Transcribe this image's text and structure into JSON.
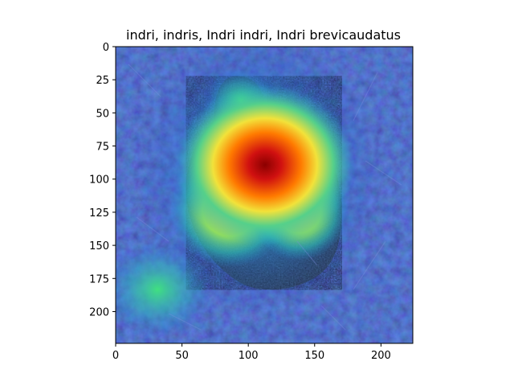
{
  "chart_data": {
    "type": "heatmap",
    "title": "indri, indris, Indri indri, Indri brevicaudatus",
    "xlabel": "",
    "ylabel": "",
    "image_size": [
      224,
      224
    ],
    "xlim": [
      0,
      224
    ],
    "ylim": [
      224,
      0
    ],
    "x_ticks": [
      0,
      50,
      100,
      150,
      200
    ],
    "y_ticks": [
      0,
      25,
      50,
      75,
      100,
      125,
      150,
      175,
      200
    ],
    "colormap": "jet",
    "overlay": "class activation heatmap over photo of an indri lemur among foliage",
    "heatmap_regions": [
      {
        "x": 110,
        "y": 80,
        "level": 1.0,
        "spread": 55
      },
      {
        "x": 95,
        "y": 110,
        "level": 0.7,
        "spread": 60
      },
      {
        "x": 75,
        "y": 120,
        "level": 0.55,
        "spread": 45
      },
      {
        "x": 130,
        "y": 120,
        "level": 0.55,
        "spread": 40
      },
      {
        "x": 20,
        "y": 190,
        "level": 0.4,
        "spread": 35
      }
    ],
    "grid": false,
    "legend": false
  }
}
